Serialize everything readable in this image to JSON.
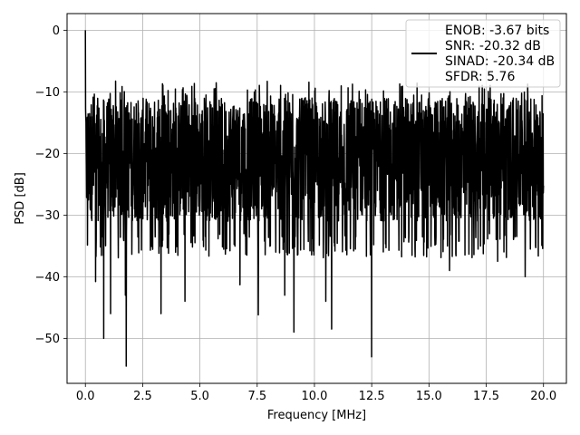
{
  "chart_data": {
    "type": "line",
    "title": "",
    "xlabel": "Frequency [MHz]",
    "ylabel": "PSD [dB]",
    "xlim": [
      -0.8,
      21.0
    ],
    "ylim": [
      -57.3,
      2.7
    ],
    "xticks": [
      0.0,
      2.5,
      5.0,
      7.5,
      10.0,
      12.5,
      15.0,
      17.5,
      20.0
    ],
    "xtick_labels": [
      "0.0",
      "2.5",
      "5.0",
      "7.5",
      "10.0",
      "12.5",
      "15.0",
      "17.5",
      "20.0"
    ],
    "yticks": [
      0,
      -10,
      -20,
      -30,
      -40,
      -50
    ],
    "ytick_labels": [
      "0",
      "−10",
      "−20",
      "−30",
      "−40",
      "−50"
    ],
    "grid": true,
    "legend_position": "top-right",
    "series": [
      {
        "name": "ENOB: -3.67 bits\nSNR: -20.32 dB\nSINAD: -20.34 dB\nSFDR: 5.76",
        "legend_lines": [
          "ENOB: -3.67 bits",
          "SNR: -20.32 dB",
          "SINAD: -20.34 dB",
          "SFDR: 5.76"
        ],
        "color": "#000000",
        "x_range": [
          0.0,
          20.0
        ],
        "peak": {
          "x": 0.0,
          "y": 0.0
        },
        "mean_level": -21.0,
        "upper_envelope": -10.0,
        "lower_envelope": -33.0,
        "notable_minima": [
          {
            "x": 1.78,
            "y": -54.5
          },
          {
            "x": 12.5,
            "y": -53.0
          },
          {
            "x": 9.1,
            "y": -49.0
          },
          {
            "x": 10.75,
            "y": -48.5
          },
          {
            "x": 0.8,
            "y": -50.0
          },
          {
            "x": 1.1,
            "y": -46.0
          },
          {
            "x": 3.3,
            "y": -46.0
          },
          {
            "x": 7.55,
            "y": -46.2
          },
          {
            "x": 4.35,
            "y": -44.0
          },
          {
            "x": 10.5,
            "y": -44.0
          },
          {
            "x": 8.7,
            "y": -43.0
          },
          {
            "x": 6.75,
            "y": -41.3
          },
          {
            "x": 0.45,
            "y": -40.8
          },
          {
            "x": 1.75,
            "y": -43.0
          },
          {
            "x": 19.2,
            "y": -40.0
          },
          {
            "x": 15.9,
            "y": -39.0
          },
          {
            "x": 18.0,
            "y": -37.5
          }
        ]
      }
    ]
  }
}
